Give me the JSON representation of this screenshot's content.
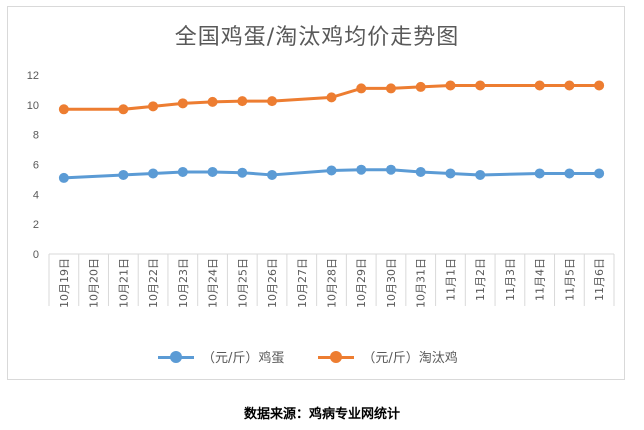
{
  "chart_data": {
    "type": "line",
    "title": "全国鸡蛋/淘汰鸡均价走势图",
    "xlabel": "",
    "ylabel": "",
    "ylim": [
      0,
      12
    ],
    "yticks": [
      0,
      2,
      4,
      6,
      8,
      10,
      12
    ],
    "grid": false,
    "legend_position": "bottom",
    "categories": [
      "10月19日",
      "10月20日",
      "10月21日",
      "10月22日",
      "10月23日",
      "10月24日",
      "10月25日",
      "10月26日",
      "10月27日",
      "10月28日",
      "10月29日",
      "10月30日",
      "10月31日",
      "11月1日",
      "11月2日",
      "11月3日",
      "11月4日",
      "11月5日",
      "11月6日"
    ],
    "series": [
      {
        "name": "（元/斤）鸡蛋",
        "color": "#5b9bd5",
        "values": [
          5.1,
          null,
          5.3,
          5.4,
          5.5,
          5.5,
          5.45,
          5.3,
          null,
          5.6,
          5.65,
          5.65,
          5.5,
          5.4,
          5.3,
          null,
          5.4,
          5.4,
          5.4
        ]
      },
      {
        "name": "（元/斤）淘汰鸡",
        "color": "#ed7d31",
        "values": [
          9.7,
          null,
          9.7,
          9.9,
          10.1,
          10.2,
          10.25,
          10.25,
          null,
          10.5,
          11.1,
          11.1,
          11.2,
          11.3,
          11.3,
          null,
          11.3,
          11.3,
          11.3
        ]
      }
    ]
  },
  "source_note": "数据来源：鸡病专业网统计"
}
